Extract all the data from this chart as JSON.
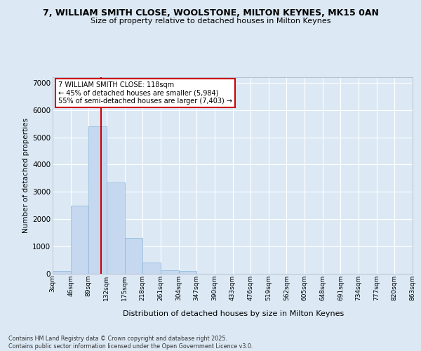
{
  "title_line1": "7, WILLIAM SMITH CLOSE, WOOLSTONE, MILTON KEYNES, MK15 0AN",
  "title_line2": "Size of property relative to detached houses in Milton Keynes",
  "xlabel": "Distribution of detached houses by size in Milton Keynes",
  "ylabel": "Number of detached properties",
  "bar_fill_color": "#c5d8f0",
  "bar_edge_color": "#88b4d8",
  "bg_color": "#dce9f5",
  "fig_bg_color": "#dce9f5",
  "grid_color": "#ffffff",
  "vline_color": "#cc0000",
  "vline_x": 118,
  "annotation_text": "7 WILLIAM SMITH CLOSE: 118sqm\n← 45% of detached houses are smaller (5,984)\n55% of semi-detached houses are larger (7,403) →",
  "footnote": "Contains HM Land Registry data © Crown copyright and database right 2025.\nContains public sector information licensed under the Open Government Licence v3.0.",
  "bin_edges": [
    3,
    46,
    89,
    132,
    175,
    218,
    261,
    304,
    347,
    390,
    433,
    476,
    519,
    562,
    605,
    648,
    691,
    734,
    777,
    820,
    863
  ],
  "bin_labels": [
    "3sqm",
    "46sqm",
    "89sqm",
    "132sqm",
    "175sqm",
    "218sqm",
    "261sqm",
    "304sqm",
    "347sqm",
    "390sqm",
    "433sqm",
    "476sqm",
    "519sqm",
    "562sqm",
    "605sqm",
    "648sqm",
    "691sqm",
    "734sqm",
    "777sqm",
    "820sqm",
    "863sqm"
  ],
  "bar_heights": [
    100,
    2500,
    5400,
    3350,
    1300,
    420,
    130,
    100,
    0,
    0,
    0,
    0,
    0,
    0,
    0,
    0,
    0,
    0,
    0,
    0
  ],
  "ylim": [
    0,
    7200
  ],
  "yticks": [
    0,
    1000,
    2000,
    3000,
    4000,
    5000,
    6000,
    7000
  ]
}
